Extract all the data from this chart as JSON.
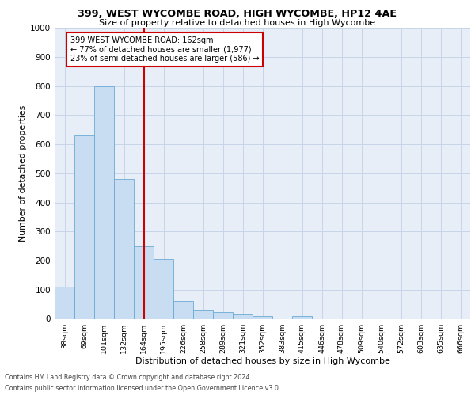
{
  "title1": "399, WEST WYCOMBE ROAD, HIGH WYCOMBE, HP12 4AE",
  "title2": "Size of property relative to detached houses in High Wycombe",
  "xlabel": "Distribution of detached houses by size in High Wycombe",
  "ylabel": "Number of detached properties",
  "footnote1": "Contains HM Land Registry data © Crown copyright and database right 2024.",
  "footnote2": "Contains public sector information licensed under the Open Government Licence v3.0.",
  "bar_labels": [
    "38sqm",
    "69sqm",
    "101sqm",
    "132sqm",
    "164sqm",
    "195sqm",
    "226sqm",
    "258sqm",
    "289sqm",
    "321sqm",
    "352sqm",
    "383sqm",
    "415sqm",
    "446sqm",
    "478sqm",
    "509sqm",
    "540sqm",
    "572sqm",
    "603sqm",
    "635sqm",
    "666sqm"
  ],
  "bar_values": [
    110,
    630,
    800,
    480,
    250,
    205,
    62,
    28,
    22,
    15,
    10,
    0,
    10,
    0,
    0,
    0,
    0,
    0,
    0,
    0,
    0
  ],
  "property_line_label": "399 WEST WYCOMBE ROAD: 162sqm",
  "annotation_line1": "← 77% of detached houses are smaller (1,977)",
  "annotation_line2": "23% of semi-detached houses are larger (586) →",
  "bar_color": "#c9ddf2",
  "bar_edge_color": "#6aaad4",
  "line_color": "#cc0000",
  "annotation_box_edge": "#cc0000",
  "grid_color": "#c8d4e8",
  "background_color": "#e8eef8",
  "ylim": [
    0,
    1000
  ],
  "yticks": [
    0,
    100,
    200,
    300,
    400,
    500,
    600,
    700,
    800,
    900,
    1000
  ],
  "vline_index": 4.0
}
